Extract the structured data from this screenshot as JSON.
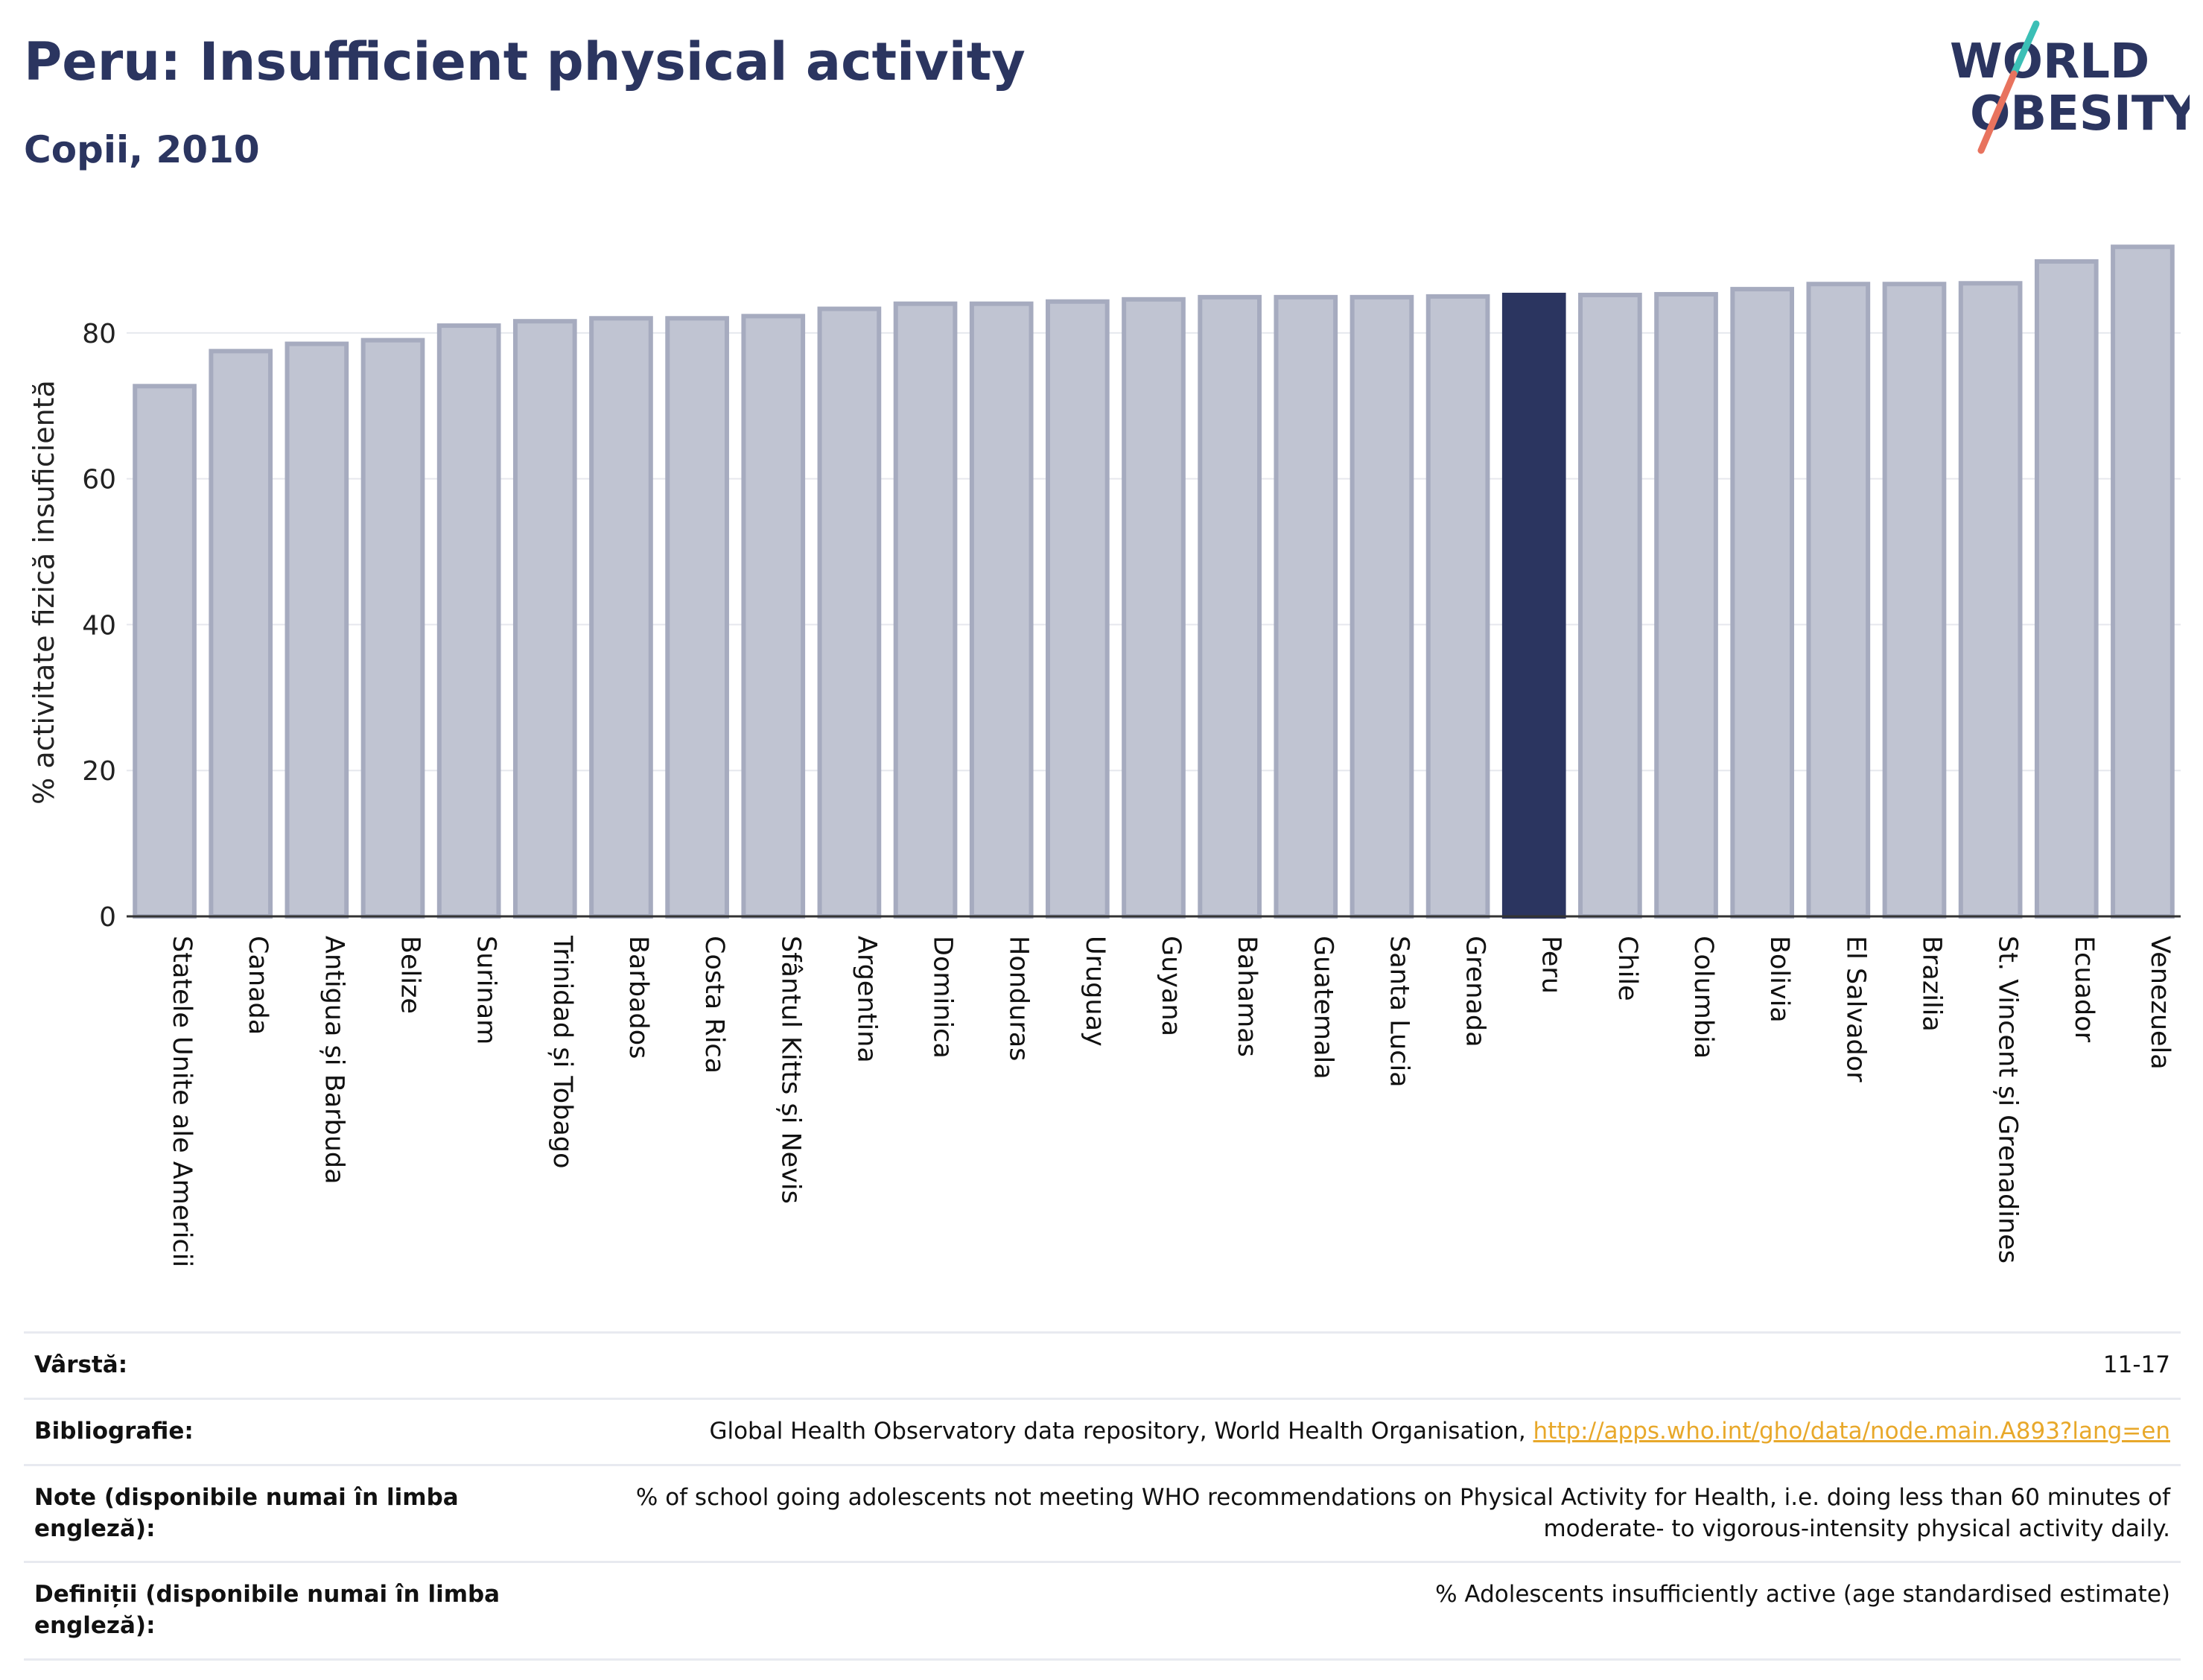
{
  "header": {
    "title": "Peru: Insufficient physical activity",
    "subtitle": "Copii, 2010"
  },
  "logo": {
    "line1": "WORLD",
    "line2": "OBESITY",
    "colors": {
      "text": "#2b3560",
      "slash_teal": "#3bbfb6",
      "slash_coral": "#e8735e"
    }
  },
  "chart_data": {
    "type": "bar",
    "ylabel": "% activitate fizică insuficientă",
    "xlabel": "",
    "ylim": [
      0,
      95
    ],
    "yticks": [
      0,
      20,
      40,
      60,
      80
    ],
    "grid": true,
    "highlight": "Peru",
    "colors": {
      "bar": "#c0c4d2",
      "bar_edge": "#a6abbf",
      "highlight": "#2b3560"
    },
    "categories": [
      "Statele Unite ale Americii",
      "Canada",
      "Antigua și Barbuda",
      "Belize",
      "Surinam",
      "Trinidad și Tobago",
      "Barbados",
      "Costa Rica",
      "Sfântul Kitts și Nevis",
      "Argentina",
      "Dominica",
      "Honduras",
      "Uruguay",
      "Guyana",
      "Bahamas",
      "Guatemala",
      "Santa Lucia",
      "Grenada",
      "Peru",
      "Chile",
      "Columbia",
      "Bolivia",
      "El Salvador",
      "Brazilia",
      "St. Vincent și Grenadines",
      "Ecuador",
      "Venezuela"
    ],
    "values": [
      72.7,
      77.5,
      78.5,
      79.0,
      81.0,
      81.6,
      82.0,
      82.0,
      82.3,
      83.3,
      84.0,
      84.0,
      84.3,
      84.6,
      84.9,
      84.9,
      84.9,
      85.0,
      85.2,
      85.2,
      85.3,
      86.0,
      86.7,
      86.7,
      86.8,
      89.8,
      91.8
    ]
  },
  "info_table": [
    {
      "label": "Vârstă:",
      "value": "11-17",
      "link": ""
    },
    {
      "label": "Bibliografie:",
      "value": "Global Health Observatory data repository, World Health Organisation, ",
      "link": "http://apps.who.int/gho/data/node.main.A893?lang=en"
    },
    {
      "label": "Note (disponibile numai în limba engleză):",
      "value": "% of school going adolescents not meeting WHO recommendations on Physical Activity for Health, i.e. doing less than 60 minutes of moderate- to vigorous-intensity physical activity daily.",
      "link": ""
    },
    {
      "label": "Definiții (disponibile numai în limba engleză):",
      "value": "% Adolescents insufficiently active (age standardised estimate)",
      "link": ""
    }
  ]
}
